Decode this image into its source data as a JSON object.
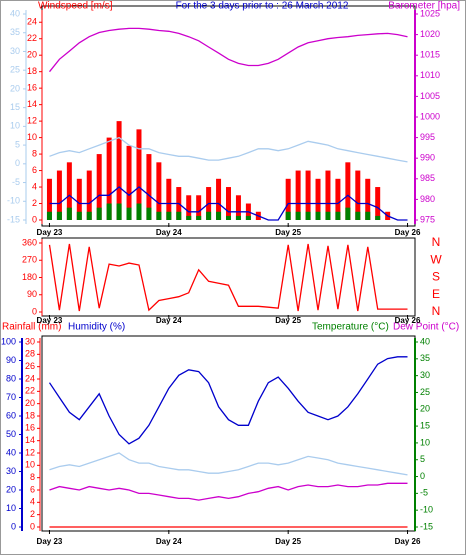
{
  "chart_data": [
    {
      "type": "line",
      "title": "For the 3 days prior to : 26 March 2012",
      "ylabel": "Windspeed [m/s]",
      "y2label": "Barometer [hpa]",
      "x": [
        0,
        2,
        4,
        6,
        8,
        10,
        12,
        14,
        16,
        18,
        20,
        22,
        24,
        26,
        28,
        30,
        32,
        34,
        36,
        38,
        40,
        42,
        44,
        46,
        48,
        50,
        52,
        54,
        56,
        58,
        60,
        62,
        64,
        66,
        68,
        70,
        72
      ],
      "xlim": [
        -1.5,
        73.5
      ],
      "xticks": [
        {
          "value": 0,
          "label": "Day 23"
        },
        {
          "value": 24,
          "label": "Day 24"
        },
        {
          "value": 48,
          "label": "Day 25"
        },
        {
          "value": 72,
          "label": "Day 26"
        }
      ],
      "ylim": [
        0,
        25
      ],
      "yticks": [
        0,
        2,
        4,
        6,
        8,
        10,
        12,
        14,
        16,
        18,
        20,
        22,
        24
      ],
      "y2lim": [
        975,
        1025
      ],
      "y2ticks": [
        975,
        980,
        985,
        990,
        995,
        1000,
        1005,
        1010,
        1015,
        1020,
        1025
      ],
      "y3lim": [
        -15,
        40
      ],
      "y3ticks": [
        -15,
        -10,
        -5,
        0,
        5,
        10,
        15,
        20,
        25,
        30,
        35,
        40
      ],
      "axis_colors": {
        "y": "#ff0000",
        "y2": "#cc00cc",
        "y3": "#aaccee"
      },
      "series": [
        {
          "type": "line",
          "axis": "y3",
          "color": "#aaccee",
          "values": [
            2,
            3,
            3.5,
            3,
            4,
            5,
            6,
            7,
            5,
            4,
            4,
            3,
            2.5,
            2,
            2,
            1.5,
            1,
            1,
            1.5,
            2,
            3,
            4,
            4,
            3.5,
            4,
            5,
            6,
            5.5,
            5,
            4,
            3.5,
            3,
            2.5,
            2,
            1.5,
            1,
            0.5
          ]
        },
        {
          "type": "bar",
          "axis": "y",
          "color": "#ff0000",
          "values": [
            5,
            6,
            7,
            5,
            6,
            8,
            10,
            12,
            9,
            11,
            8,
            7,
            5,
            4,
            3,
            3,
            4,
            5,
            4,
            3,
            2,
            1,
            0,
            0,
            5,
            6,
            6,
            5,
            6,
            5,
            7,
            6,
            5,
            4,
            1,
            0,
            0
          ]
        },
        {
          "type": "bar",
          "axis": "y",
          "color": "#008000",
          "values": [
            1,
            1,
            1.5,
            1,
            1,
            1.5,
            2,
            2,
            1.5,
            2,
            1.5,
            1,
            1,
            1,
            0.5,
            0.5,
            1,
            1,
            0.5,
            0.5,
            0.5,
            0,
            0,
            0,
            1,
            1,
            1,
            1,
            1,
            1,
            1.5,
            1,
            1,
            0.5,
            0,
            0,
            0
          ]
        },
        {
          "type": "line",
          "axis": "y",
          "color": "#0000cc",
          "values": [
            2,
            2,
            3,
            2,
            2,
            3,
            3,
            4,
            3,
            4,
            3,
            2,
            2,
            2,
            1,
            1,
            2,
            2,
            1,
            1,
            1,
            0.5,
            0,
            0,
            2,
            2,
            2,
            2,
            2,
            2,
            3,
            2,
            2,
            1.5,
            0.5,
            0,
            0
          ]
        },
        {
          "type": "line",
          "axis": "y2",
          "color": "#cc00cc",
          "values": [
            1011,
            1014,
            1016,
            1018,
            1019.5,
            1020.5,
            1021,
            1021.3,
            1021.5,
            1021.5,
            1021.3,
            1021,
            1020.8,
            1020.3,
            1019.5,
            1018.5,
            1017,
            1015.5,
            1014,
            1013,
            1012.5,
            1012.5,
            1013,
            1014,
            1015.5,
            1017,
            1018,
            1018.5,
            1019,
            1019.3,
            1019.5,
            1019.8,
            1020,
            1020.2,
            1020.3,
            1020,
            1019.5
          ]
        }
      ]
    },
    {
      "type": "line",
      "x": [
        0,
        2,
        4,
        6,
        8,
        10,
        12,
        14,
        16,
        18,
        20,
        22,
        24,
        26,
        28,
        30,
        32,
        34,
        36,
        38,
        40,
        42,
        44,
        46,
        48,
        50,
        52,
        54,
        56,
        58,
        60,
        62,
        64,
        66,
        68,
        70,
        72
      ],
      "xlim": [
        -1.5,
        73.5
      ],
      "xticks": [
        {
          "value": 0,
          "label": "Day 23"
        },
        {
          "value": 24,
          "label": "Day 24"
        },
        {
          "value": 48,
          "label": "Day 25"
        },
        {
          "value": 72,
          "label": "Day 26"
        }
      ],
      "ylim": [
        0,
        360
      ],
      "yticks": [
        0,
        90,
        180,
        270,
        360
      ],
      "compass": [
        "N",
        "E",
        "S",
        "W",
        "N"
      ],
      "axis_colors": {
        "y": "#ff0000"
      },
      "series": [
        {
          "type": "line",
          "axis": "y",
          "color": "#ff0000",
          "values": [
            350,
            10,
            355,
            5,
            340,
            20,
            250,
            240,
            255,
            245,
            10,
            60,
            70,
            80,
            100,
            220,
            160,
            150,
            140,
            30,
            30,
            30,
            25,
            20,
            350,
            5,
            355,
            10,
            345,
            15,
            350,
            5,
            340,
            15,
            15,
            15,
            15
          ]
        }
      ]
    },
    {
      "type": "line",
      "x": [
        0,
        2,
        4,
        6,
        8,
        10,
        12,
        14,
        16,
        18,
        20,
        22,
        24,
        26,
        28,
        30,
        32,
        34,
        36,
        38,
        40,
        42,
        44,
        46,
        48,
        50,
        52,
        54,
        56,
        58,
        60,
        62,
        64,
        66,
        68,
        70,
        72
      ],
      "xlim": [
        -1.5,
        73.5
      ],
      "xticks": [
        {
          "value": 0,
          "label": "Day 23"
        },
        {
          "value": 24,
          "label": "Day 24"
        },
        {
          "value": 48,
          "label": "Day 25"
        },
        {
          "value": 72,
          "label": "Day 26"
        }
      ],
      "ylim": [
        0,
        100
      ],
      "yticks": [
        0,
        10,
        20,
        30,
        40,
        50,
        60,
        70,
        80,
        90,
        100
      ],
      "y2lim": [
        -15,
        40
      ],
      "y2ticks": [
        -15,
        -10,
        -5,
        0,
        5,
        10,
        15,
        20,
        25,
        30,
        35,
        40
      ],
      "y3lim": [
        0,
        30
      ],
      "y3ticks": [
        0,
        2,
        4,
        6,
        8,
        10,
        12,
        14,
        16,
        18,
        20,
        22,
        24,
        26,
        28,
        30
      ],
      "axis_colors": {
        "y": "#0000cc",
        "y2": "#008000",
        "y3": "#ff0000"
      },
      "series": [
        {
          "name": "Rainfall (mm)",
          "type": "line",
          "axis": "y3",
          "color": "#ff0000",
          "values": [
            0,
            0,
            0,
            0,
            0,
            0,
            0,
            0,
            0,
            0,
            0,
            0,
            0,
            0,
            0,
            0,
            0,
            0,
            0,
            0,
            0,
            0,
            0,
            0,
            0,
            0,
            0,
            0,
            0,
            0,
            0,
            0,
            0,
            0,
            0,
            0,
            0
          ]
        },
        {
          "name": "Humidity (%)",
          "type": "line",
          "axis": "y",
          "color": "#0000cc",
          "values": [
            78,
            70,
            62,
            58,
            65,
            72,
            60,
            50,
            45,
            48,
            55,
            65,
            75,
            82,
            85,
            84,
            78,
            65,
            58,
            55,
            55,
            68,
            78,
            81,
            75,
            68,
            62,
            60,
            58,
            60,
            65,
            72,
            80,
            88,
            91,
            92,
            92
          ]
        },
        {
          "name": "Temperature (°C)",
          "type": "line",
          "axis": "y2",
          "color": "#aaccee",
          "values": [
            2,
            3,
            3.5,
            3,
            4,
            5,
            6,
            7,
            5,
            4,
            4,
            3,
            2.5,
            2,
            2,
            1.5,
            1,
            1,
            1.5,
            2,
            3,
            4,
            4,
            3.5,
            4,
            5,
            6,
            5.5,
            5,
            4,
            3.5,
            3,
            2.5,
            2,
            1.5,
            1,
            0.5
          ]
        },
        {
          "name": "Dew Point (°C)",
          "type": "line",
          "axis": "y2",
          "color": "#cc00cc",
          "values": [
            -4,
            -3,
            -3.5,
            -4,
            -3,
            -3.5,
            -4,
            -3.5,
            -4,
            -5,
            -5,
            -5.5,
            -6,
            -6.5,
            -6.5,
            -7,
            -6.5,
            -6,
            -6.5,
            -6,
            -5,
            -4.5,
            -3.5,
            -3,
            -4,
            -3,
            -2.5,
            -3,
            -3,
            -2.5,
            -3,
            -3,
            -2.5,
            -2.5,
            -2,
            -2,
            -2
          ]
        }
      ]
    }
  ]
}
